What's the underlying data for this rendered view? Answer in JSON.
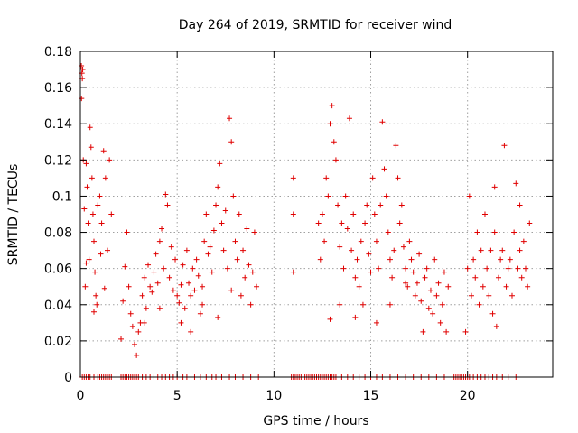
{
  "chart_data": {
    "type": "scatter",
    "title": "Day 264 of 2019, SRMTID for receiver wind",
    "xlabel": "GPS time / hours",
    "ylabel": "SRMTID / TECUs",
    "xlim": [
      0,
      24.4
    ],
    "ylim": [
      0,
      0.18
    ],
    "x_ticks": [
      0,
      5,
      10,
      15,
      20
    ],
    "x_tick_labels": [
      "0",
      "5",
      "10",
      "15",
      "20"
    ],
    "y_ticks": [
      0,
      0.02,
      0.04,
      0.06,
      0.08,
      0.1,
      0.12,
      0.14,
      0.16,
      0.18
    ],
    "y_tick_labels": [
      "0",
      "0.02",
      "0.04",
      "0.06",
      "0.08",
      "0.1",
      "0.12",
      "0.14",
      "0.16",
      "0.18"
    ],
    "grid": true,
    "marker": "+",
    "color": "#e00000",
    "series": [
      {
        "name": "SRMTID",
        "points": [
          [
            0.05,
            0.172
          ],
          [
            0.08,
            0.168
          ],
          [
            0.1,
            0.165
          ],
          [
            0.12,
            0.17
          ],
          [
            0.06,
            0.154
          ],
          [
            0.15,
            0.12
          ],
          [
            0.2,
            0.093
          ],
          [
            0.25,
            0.05
          ],
          [
            0.3,
            0.118
          ],
          [
            0.35,
            0.105
          ],
          [
            0.4,
            0.085
          ],
          [
            0.45,
            0.065
          ],
          [
            0.5,
            0.138
          ],
          [
            0.55,
            0.127
          ],
          [
            0.6,
            0.11
          ],
          [
            0.65,
            0.09
          ],
          [
            0.7,
            0.075
          ],
          [
            0.75,
            0.058
          ],
          [
            0.8,
            0.045
          ],
          [
            0.85,
            0.04
          ],
          [
            0.9,
            0.095
          ],
          [
            1.0,
            0.1
          ],
          [
            1.1,
            0.085
          ],
          [
            1.2,
            0.125
          ],
          [
            1.3,
            0.11
          ],
          [
            1.4,
            0.07
          ],
          [
            1.5,
            0.12
          ],
          [
            1.6,
            0.09
          ],
          [
            0.3,
            0.063
          ],
          [
            0.7,
            0.036
          ],
          [
            1.05,
            0.068
          ],
          [
            1.25,
            0.049
          ],
          [
            2.1,
            0.021
          ],
          [
            2.2,
            0.042
          ],
          [
            2.3,
            0.061
          ],
          [
            2.4,
            0.08
          ],
          [
            2.5,
            0.05
          ],
          [
            2.6,
            0.035
          ],
          [
            2.7,
            0.028
          ],
          [
            2.8,
            0.018
          ],
          [
            2.9,
            0.012
          ],
          [
            3.0,
            0.025
          ],
          [
            3.1,
            0.03
          ],
          [
            3.2,
            0.045
          ],
          [
            3.3,
            0.055
          ],
          [
            3.4,
            0.038
          ],
          [
            3.5,
            0.062
          ],
          [
            3.6,
            0.05
          ],
          [
            3.7,
            0.047
          ],
          [
            3.8,
            0.058
          ],
          [
            3.9,
            0.068
          ],
          [
            4.0,
            0.052
          ],
          [
            4.1,
            0.075
          ],
          [
            4.2,
            0.082
          ],
          [
            4.3,
            0.06
          ],
          [
            4.4,
            0.101
          ],
          [
            4.5,
            0.095
          ],
          [
            4.6,
            0.055
          ],
          [
            4.7,
            0.072
          ],
          [
            4.8,
            0.048
          ],
          [
            4.9,
            0.065
          ],
          [
            5.0,
            0.045
          ],
          [
            5.1,
            0.041
          ],
          [
            5.2,
            0.051
          ],
          [
            5.3,
            0.062
          ],
          [
            5.4,
            0.038
          ],
          [
            5.5,
            0.07
          ],
          [
            5.6,
            0.052
          ],
          [
            5.7,
            0.045
          ],
          [
            5.8,
            0.06
          ],
          [
            5.9,
            0.048
          ],
          [
            6.0,
            0.065
          ],
          [
            6.1,
            0.056
          ],
          [
            6.2,
            0.035
          ],
          [
            6.3,
            0.05
          ],
          [
            6.4,
            0.075
          ],
          [
            6.5,
            0.09
          ],
          [
            6.6,
            0.068
          ],
          [
            6.7,
            0.072
          ],
          [
            6.8,
            0.058
          ],
          [
            6.9,
            0.081
          ],
          [
            7.0,
            0.095
          ],
          [
            7.1,
            0.105
          ],
          [
            7.2,
            0.118
          ],
          [
            7.3,
            0.085
          ],
          [
            7.4,
            0.07
          ],
          [
            7.5,
            0.092
          ],
          [
            7.6,
            0.06
          ],
          [
            7.7,
            0.143
          ],
          [
            7.8,
            0.13
          ],
          [
            7.9,
            0.1
          ],
          [
            8.0,
            0.075
          ],
          [
            8.1,
            0.065
          ],
          [
            8.2,
            0.09
          ],
          [
            8.3,
            0.045
          ],
          [
            8.4,
            0.07
          ],
          [
            8.5,
            0.055
          ],
          [
            8.6,
            0.082
          ],
          [
            8.7,
            0.062
          ],
          [
            8.8,
            0.04
          ],
          [
            8.9,
            0.058
          ],
          [
            9.0,
            0.08
          ],
          [
            9.1,
            0.05
          ],
          [
            3.3,
            0.03
          ],
          [
            4.1,
            0.038
          ],
          [
            5.2,
            0.03
          ],
          [
            5.7,
            0.025
          ],
          [
            6.3,
            0.04
          ],
          [
            7.1,
            0.033
          ],
          [
            7.8,
            0.048
          ],
          [
            11.0,
            0.058
          ],
          [
            11.0,
            0.11
          ],
          [
            11.0,
            0.09
          ],
          [
            12.3,
            0.085
          ],
          [
            12.4,
            0.065
          ],
          [
            12.5,
            0.09
          ],
          [
            12.6,
            0.075
          ],
          [
            12.7,
            0.11
          ],
          [
            12.8,
            0.1
          ],
          [
            12.9,
            0.14
          ],
          [
            13.0,
            0.15
          ],
          [
            13.1,
            0.13
          ],
          [
            13.2,
            0.12
          ],
          [
            13.3,
            0.095
          ],
          [
            13.4,
            0.072
          ],
          [
            13.5,
            0.085
          ],
          [
            13.6,
            0.06
          ],
          [
            13.7,
            0.1
          ],
          [
            13.8,
            0.082
          ],
          [
            13.9,
            0.143
          ],
          [
            14.0,
            0.07
          ],
          [
            14.1,
            0.09
          ],
          [
            14.2,
            0.055
          ],
          [
            14.3,
            0.065
          ],
          [
            14.4,
            0.05
          ],
          [
            14.5,
            0.075
          ],
          [
            14.6,
            0.04
          ],
          [
            14.7,
            0.085
          ],
          [
            14.8,
            0.095
          ],
          [
            14.9,
            0.068
          ],
          [
            15.0,
            0.058
          ],
          [
            15.1,
            0.11
          ],
          [
            15.2,
            0.09
          ],
          [
            15.3,
            0.075
          ],
          [
            15.4,
            0.06
          ],
          [
            15.5,
            0.095
          ],
          [
            15.6,
            0.141
          ],
          [
            15.7,
            0.115
          ],
          [
            15.8,
            0.1
          ],
          [
            15.9,
            0.08
          ],
          [
            16.0,
            0.065
          ],
          [
            16.1,
            0.055
          ],
          [
            16.2,
            0.07
          ],
          [
            16.3,
            0.128
          ],
          [
            16.4,
            0.11
          ],
          [
            16.5,
            0.085
          ],
          [
            16.6,
            0.095
          ],
          [
            16.7,
            0.072
          ],
          [
            16.8,
            0.06
          ],
          [
            16.9,
            0.05
          ],
          [
            17.0,
            0.075
          ],
          [
            17.1,
            0.065
          ],
          [
            17.2,
            0.058
          ],
          [
            17.3,
            0.045
          ],
          [
            17.4,
            0.052
          ],
          [
            17.5,
            0.068
          ],
          [
            17.6,
            0.042
          ],
          [
            17.7,
            0.025
          ],
          [
            17.8,
            0.055
          ],
          [
            17.9,
            0.06
          ],
          [
            18.0,
            0.038
          ],
          [
            18.1,
            0.048
          ],
          [
            18.2,
            0.035
          ],
          [
            18.3,
            0.065
          ],
          [
            18.4,
            0.045
          ],
          [
            18.5,
            0.052
          ],
          [
            18.6,
            0.03
          ],
          [
            18.7,
            0.04
          ],
          [
            18.8,
            0.058
          ],
          [
            18.9,
            0.025
          ],
          [
            19.0,
            0.05
          ],
          [
            12.9,
            0.032
          ],
          [
            13.4,
            0.04
          ],
          [
            14.2,
            0.033
          ],
          [
            15.3,
            0.03
          ],
          [
            16.0,
            0.04
          ],
          [
            16.8,
            0.052
          ],
          [
            19.9,
            0.025
          ],
          [
            20.0,
            0.06
          ],
          [
            20.1,
            0.1
          ],
          [
            20.2,
            0.045
          ],
          [
            20.3,
            0.065
          ],
          [
            20.4,
            0.055
          ],
          [
            20.5,
            0.08
          ],
          [
            20.6,
            0.04
          ],
          [
            20.7,
            0.07
          ],
          [
            20.8,
            0.05
          ],
          [
            20.9,
            0.09
          ],
          [
            21.0,
            0.06
          ],
          [
            21.1,
            0.045
          ],
          [
            21.2,
            0.07
          ],
          [
            21.3,
            0.035
          ],
          [
            21.4,
            0.08
          ],
          [
            21.5,
            0.028
          ],
          [
            21.6,
            0.055
          ],
          [
            21.7,
            0.065
          ],
          [
            21.8,
            0.07
          ],
          [
            21.9,
            0.128
          ],
          [
            22.0,
            0.05
          ],
          [
            22.1,
            0.06
          ],
          [
            22.2,
            0.065
          ],
          [
            22.3,
            0.045
          ],
          [
            22.4,
            0.08
          ],
          [
            22.5,
            0.107
          ],
          [
            22.6,
            0.06
          ],
          [
            22.7,
            0.07
          ],
          [
            22.8,
            0.055
          ],
          [
            22.9,
            0.075
          ],
          [
            23.0,
            0.06
          ],
          [
            23.1,
            0.05
          ],
          [
            23.2,
            0.085
          ],
          [
            22.7,
            0.095
          ],
          [
            21.4,
            0.105
          ]
        ]
      }
    ],
    "zero_points_x": [
      0.1,
      0.2,
      0.3,
      0.4,
      0.5,
      0.7,
      0.9,
      1.0,
      1.1,
      1.2,
      1.3,
      1.4,
      1.5,
      1.6,
      2.1,
      2.2,
      2.3,
      2.4,
      2.5,
      2.6,
      2.7,
      2.8,
      2.9,
      3.0,
      3.2,
      3.4,
      3.6,
      3.8,
      4.0,
      4.2,
      4.4,
      4.6,
      4.8,
      5.0,
      5.3,
      5.5,
      5.9,
      6.2,
      6.5,
      6.8,
      7.0,
      7.3,
      7.7,
      8.0,
      8.4,
      8.8,
      9.2,
      10.9,
      11.0,
      11.1,
      11.2,
      11.3,
      11.4,
      11.5,
      11.6,
      11.7,
      11.8,
      11.9,
      12.0,
      12.1,
      12.2,
      12.3,
      12.4,
      12.5,
      12.6,
      12.7,
      12.8,
      12.9,
      13.0,
      13.1,
      13.2,
      13.5,
      13.8,
      14.1,
      14.4,
      14.7,
      15.0,
      15.3,
      15.6,
      16.0,
      16.4,
      16.8,
      17.2,
      17.6,
      18.0,
      18.4,
      18.8,
      19.3,
      19.4,
      19.5,
      19.6,
      19.7,
      19.8,
      19.9,
      20.0,
      20.1,
      20.3,
      20.5,
      20.7,
      20.9,
      21.1,
      21.3,
      21.5,
      21.8,
      22.1,
      22.5
    ]
  }
}
